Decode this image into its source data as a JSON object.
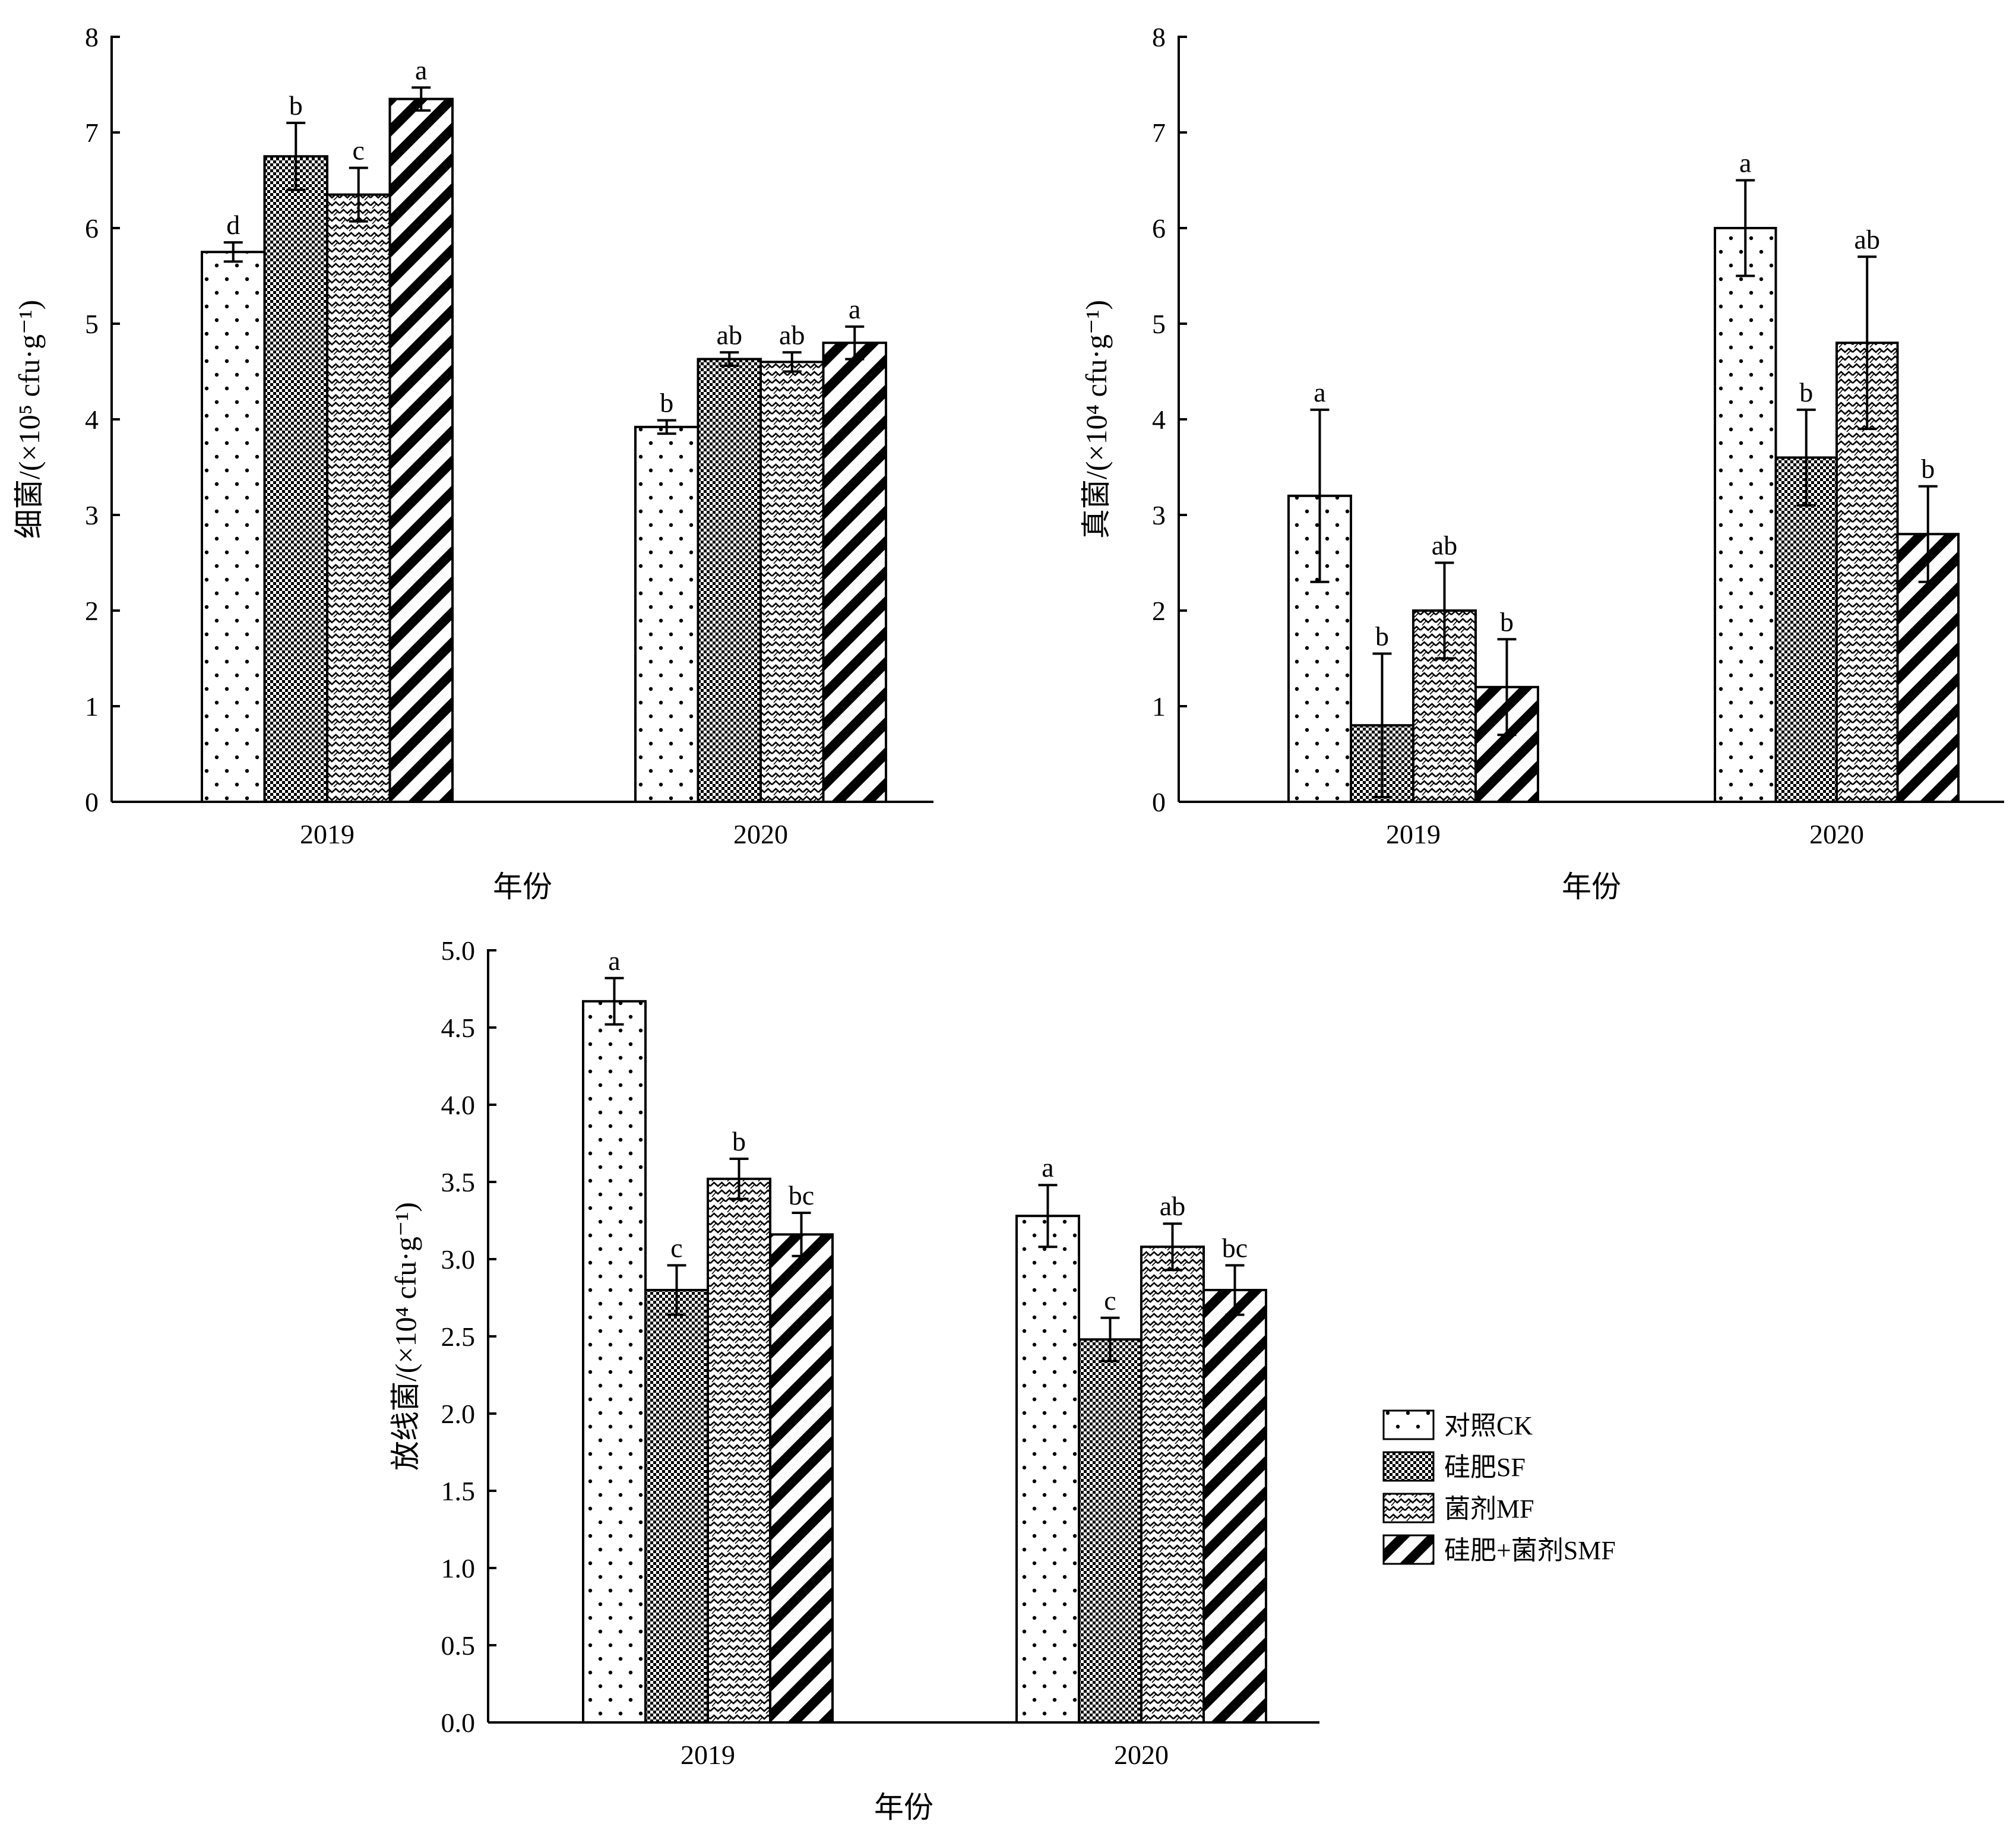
{
  "legend": [
    {
      "key": "CK",
      "label": "对照CK",
      "pattern": "dots"
    },
    {
      "key": "SF",
      "label": "硅肥SF",
      "pattern": "checker"
    },
    {
      "key": "MF",
      "label": "菌剂MF",
      "pattern": "zigzag"
    },
    {
      "key": "SMF",
      "label": "硅肥+菌剂SMF",
      "pattern": "diagonal"
    }
  ],
  "chart_data": [
    {
      "id": "bacteria",
      "type": "bar",
      "title": "",
      "xlabel": "年份",
      "ylabel": "细菌/(×10⁵ cfu·g⁻¹)",
      "categories": [
        "2019",
        "2020"
      ],
      "ylim": [
        0,
        8
      ],
      "yticks": [
        "0",
        "1",
        "2",
        "3",
        "4",
        "5",
        "6",
        "7",
        "8"
      ],
      "series": [
        {
          "name": "对照CK",
          "values": [
            5.75,
            3.92
          ],
          "errors": [
            0.1,
            0.07
          ],
          "letters": [
            "d",
            "b"
          ]
        },
        {
          "name": "硅肥SF",
          "values": [
            6.75,
            4.63
          ],
          "errors": [
            0.35,
            0.07
          ],
          "letters": [
            "b",
            "ab"
          ]
        },
        {
          "name": "菌剂MF",
          "values": [
            6.35,
            4.6
          ],
          "errors": [
            0.28,
            0.1
          ],
          "letters": [
            "c",
            "ab"
          ]
        },
        {
          "name": "硅肥+菌剂SMF",
          "values": [
            7.35,
            4.8
          ],
          "errors": [
            0.12,
            0.17
          ],
          "letters": [
            "a",
            "a"
          ]
        }
      ]
    },
    {
      "id": "fungi",
      "type": "bar",
      "title": "",
      "xlabel": "年份",
      "ylabel": "真菌/(×10⁴ cfu·g⁻¹)",
      "categories": [
        "2019",
        "2020"
      ],
      "ylim": [
        0,
        8
      ],
      "yticks": [
        "0",
        "1",
        "2",
        "3",
        "4",
        "5",
        "6",
        "7",
        "8"
      ],
      "series": [
        {
          "name": "对照CK",
          "values": [
            3.2,
            6.0
          ],
          "errors": [
            0.9,
            0.5
          ],
          "letters": [
            "a",
            "a"
          ]
        },
        {
          "name": "硅肥SF",
          "values": [
            0.8,
            3.6
          ],
          "errors": [
            0.75,
            0.5
          ],
          "letters": [
            "b",
            "b"
          ]
        },
        {
          "name": "菌剂MF",
          "values": [
            2.0,
            4.8
          ],
          "errors": [
            0.5,
            0.9
          ],
          "letters": [
            "ab",
            "ab"
          ]
        },
        {
          "name": "硅肥+菌剂SMF",
          "values": [
            1.2,
            2.8
          ],
          "errors": [
            0.5,
            0.5
          ],
          "letters": [
            "b",
            "b"
          ]
        }
      ]
    },
    {
      "id": "actinomycetes",
      "type": "bar",
      "title": "",
      "xlabel": "年份",
      "ylabel": "放线菌/(×10⁴ cfu·g⁻¹)",
      "categories": [
        "2019",
        "2020"
      ],
      "ylim": [
        0,
        5
      ],
      "yticks": [
        "0.0",
        "0.5",
        "1.0",
        "1.5",
        "2.0",
        "2.5",
        "3.0",
        "3.5",
        "4.0",
        "4.5",
        "5.0"
      ],
      "series": [
        {
          "name": "对照CK",
          "values": [
            4.67,
            3.28
          ],
          "errors": [
            0.15,
            0.2
          ],
          "letters": [
            "a",
            "a"
          ]
        },
        {
          "name": "硅肥SF",
          "values": [
            2.8,
            2.48
          ],
          "errors": [
            0.16,
            0.14
          ],
          "letters": [
            "c",
            "c"
          ]
        },
        {
          "name": "菌剂MF",
          "values": [
            3.52,
            3.08
          ],
          "errors": [
            0.13,
            0.15
          ],
          "letters": [
            "b",
            "ab"
          ]
        },
        {
          "name": "硅肥+菌剂SMF",
          "values": [
            3.16,
            2.8
          ],
          "errors": [
            0.14,
            0.16
          ],
          "letters": [
            "bc",
            "bc"
          ]
        }
      ]
    }
  ]
}
